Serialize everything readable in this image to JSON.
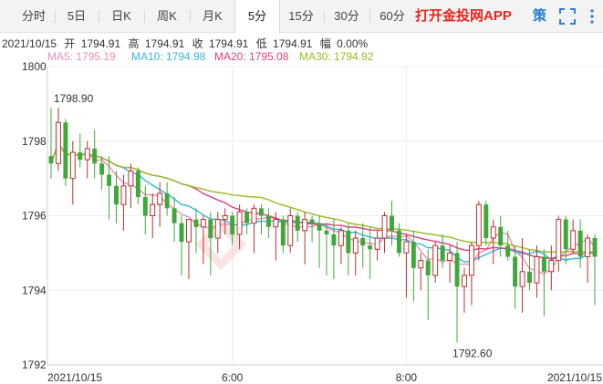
{
  "tabs": [
    {
      "label": "分时",
      "active": false
    },
    {
      "label": "5日",
      "active": false
    },
    {
      "label": "日K",
      "active": false
    },
    {
      "label": "周K",
      "active": false
    },
    {
      "label": "月K",
      "active": false
    },
    {
      "label": "5分",
      "active": true
    },
    {
      "label": "15分",
      "active": false
    },
    {
      "label": "30分",
      "active": false
    },
    {
      "label": "60分",
      "active": false
    }
  ],
  "app_link": "打开金投网APP",
  "strategy_label": "策",
  "info": {
    "date": "2021/10/15",
    "open_label": "开",
    "open": "1794.91",
    "high_label": "高",
    "high": "1794.91",
    "close_label": "收",
    "close": "1794.91",
    "low_label": "低",
    "low": "1794.91",
    "change_label": "幅",
    "change": "0.00%"
  },
  "ma": [
    {
      "label": "MA5:",
      "value": "1795.19",
      "color": "#f08cb4"
    },
    {
      "label": "MA10:",
      "value": "1794.98",
      "color": "#38b6d8"
    },
    {
      "label": "MA20:",
      "value": "1795.08",
      "color": "#e0407a"
    },
    {
      "label": "MA30:",
      "value": "1794.92",
      "color": "#9aba26"
    }
  ],
  "colors": {
    "up": "#b8322f",
    "down": "#3fa83a"
  },
  "chart_data": {
    "type": "candlestick",
    "interval": "5分",
    "ylim": [
      1792,
      1800
    ],
    "yticks": [
      1792,
      1794,
      1796,
      1798,
      1800
    ],
    "xticks": [
      {
        "label": "2021/10/15",
        "index": 0
      },
      {
        "label": "6:00",
        "index": 25
      },
      {
        "label": "8:00",
        "index": 49
      },
      {
        "label": "2021/10/15",
        "index": 71
      }
    ],
    "annotations": [
      {
        "label": "1798.90",
        "value": 1798.9,
        "index": 1
      },
      {
        "label": "1792.60",
        "value": 1792.6,
        "index": 56
      }
    ],
    "candles": [
      [
        1797.6,
        1798.9,
        1797.0,
        1797.4
      ],
      [
        1797.4,
        1798.9,
        1797.2,
        1798.5
      ],
      [
        1798.5,
        1798.6,
        1796.8,
        1797.0
      ],
      [
        1797.0,
        1798.0,
        1796.3,
        1797.7
      ],
      [
        1797.7,
        1798.2,
        1797.3,
        1797.5
      ],
      [
        1797.5,
        1798.0,
        1797.0,
        1797.8
      ],
      [
        1797.8,
        1798.3,
        1797.0,
        1797.4
      ],
      [
        1797.4,
        1797.6,
        1796.7,
        1797.1
      ],
      [
        1797.1,
        1797.6,
        1795.9,
        1796.8
      ],
      [
        1796.8,
        1797.2,
        1795.8,
        1796.3
      ],
      [
        1796.3,
        1797.1,
        1795.6,
        1796.8
      ],
      [
        1796.8,
        1797.4,
        1796.2,
        1797.2
      ],
      [
        1797.2,
        1797.3,
        1796.3,
        1796.5
      ],
      [
        1796.5,
        1796.8,
        1795.5,
        1796.0
      ],
      [
        1796.0,
        1796.6,
        1795.4,
        1796.3
      ],
      [
        1796.3,
        1796.9,
        1795.7,
        1796.6
      ],
      [
        1796.6,
        1796.9,
        1796.0,
        1796.2
      ],
      [
        1796.2,
        1796.5,
        1795.3,
        1795.8
      ],
      [
        1795.8,
        1796.0,
        1794.4,
        1795.3
      ],
      [
        1795.3,
        1795.9,
        1794.3,
        1795.9
      ],
      [
        1795.9,
        1796.2,
        1795.0,
        1795.7
      ],
      [
        1795.7,
        1796.0,
        1794.7,
        1795.9
      ],
      [
        1795.9,
        1796.1,
        1794.4,
        1795.4
      ],
      [
        1795.4,
        1796.1,
        1795.0,
        1795.9
      ],
      [
        1795.9,
        1796.2,
        1795.5,
        1796.0
      ],
      [
        1796.0,
        1796.1,
        1795.2,
        1795.5
      ],
      [
        1795.5,
        1796.3,
        1795.1,
        1796.1
      ],
      [
        1796.1,
        1796.2,
        1795.5,
        1795.8
      ],
      [
        1795.8,
        1796.3,
        1795.0,
        1796.2
      ],
      [
        1796.2,
        1796.3,
        1795.5,
        1796.0
      ],
      [
        1796.0,
        1796.2,
        1795.4,
        1795.7
      ],
      [
        1795.7,
        1796.1,
        1794.8,
        1795.9
      ],
      [
        1795.9,
        1796.0,
        1795.0,
        1795.2
      ],
      [
        1795.2,
        1796.2,
        1795.0,
        1796.0
      ],
      [
        1796.0,
        1796.1,
        1795.3,
        1795.6
      ],
      [
        1795.6,
        1796.1,
        1794.7,
        1795.9
      ],
      [
        1795.9,
        1796.0,
        1795.3,
        1795.8
      ],
      [
        1795.8,
        1796.0,
        1794.6,
        1795.6
      ],
      [
        1795.6,
        1795.8,
        1794.4,
        1795.5
      ],
      [
        1795.5,
        1795.9,
        1794.3,
        1795.2
      ],
      [
        1795.2,
        1795.7,
        1794.7,
        1795.6
      ],
      [
        1795.6,
        1795.8,
        1794.4,
        1795.0
      ],
      [
        1795.0,
        1795.6,
        1794.4,
        1795.4
      ],
      [
        1795.4,
        1795.8,
        1794.6,
        1795.2
      ],
      [
        1795.2,
        1795.7,
        1794.3,
        1795.1
      ],
      [
        1795.1,
        1795.6,
        1794.8,
        1795.4
      ],
      [
        1795.4,
        1796.1,
        1795.0,
        1796.0
      ],
      [
        1796.0,
        1796.4,
        1795.2,
        1795.6
      ],
      [
        1795.6,
        1795.8,
        1794.9,
        1795.0
      ],
      [
        1795.0,
        1795.5,
        1793.8,
        1795.3
      ],
      [
        1795.3,
        1795.6,
        1793.7,
        1794.6
      ],
      [
        1794.6,
        1795.0,
        1794.0,
        1794.8
      ],
      [
        1794.8,
        1795.1,
        1793.2,
        1794.4
      ],
      [
        1794.4,
        1795.3,
        1794.2,
        1795.2
      ],
      [
        1795.2,
        1795.5,
        1794.6,
        1794.8
      ],
      [
        1794.8,
        1795.2,
        1794.2,
        1795.0
      ],
      [
        1795.0,
        1795.3,
        1792.6,
        1794.1
      ],
      [
        1794.1,
        1794.6,
        1793.4,
        1794.4
      ],
      [
        1794.4,
        1795.3,
        1793.6,
        1795.2
      ],
      [
        1795.2,
        1796.4,
        1794.8,
        1796.3
      ],
      [
        1796.3,
        1796.4,
        1795.2,
        1795.4
      ],
      [
        1795.4,
        1795.9,
        1794.7,
        1795.7
      ],
      [
        1795.7,
        1796.0,
        1794.9,
        1795.2
      ],
      [
        1795.2,
        1795.6,
        1794.8,
        1794.9
      ],
      [
        1794.9,
        1795.2,
        1793.5,
        1794.1
      ],
      [
        1794.1,
        1795.4,
        1793.4,
        1794.5
      ],
      [
        1794.5,
        1795.1,
        1794.0,
        1794.2
      ],
      [
        1794.2,
        1795.2,
        1793.8,
        1794.9
      ],
      [
        1794.9,
        1795.1,
        1793.3,
        1794.5
      ],
      [
        1794.5,
        1795.2,
        1794.0,
        1794.8
      ],
      [
        1794.8,
        1796.0,
        1794.5,
        1795.9
      ],
      [
        1795.9,
        1796.0,
        1794.7,
        1795.1
      ],
      [
        1795.1,
        1795.9,
        1795.0,
        1795.6
      ],
      [
        1795.6,
        1795.9,
        1794.6,
        1794.9
      ],
      [
        1794.9,
        1795.5,
        1794.2,
        1795.4
      ],
      [
        1795.4,
        1795.5,
        1793.6,
        1794.9
      ]
    ]
  }
}
